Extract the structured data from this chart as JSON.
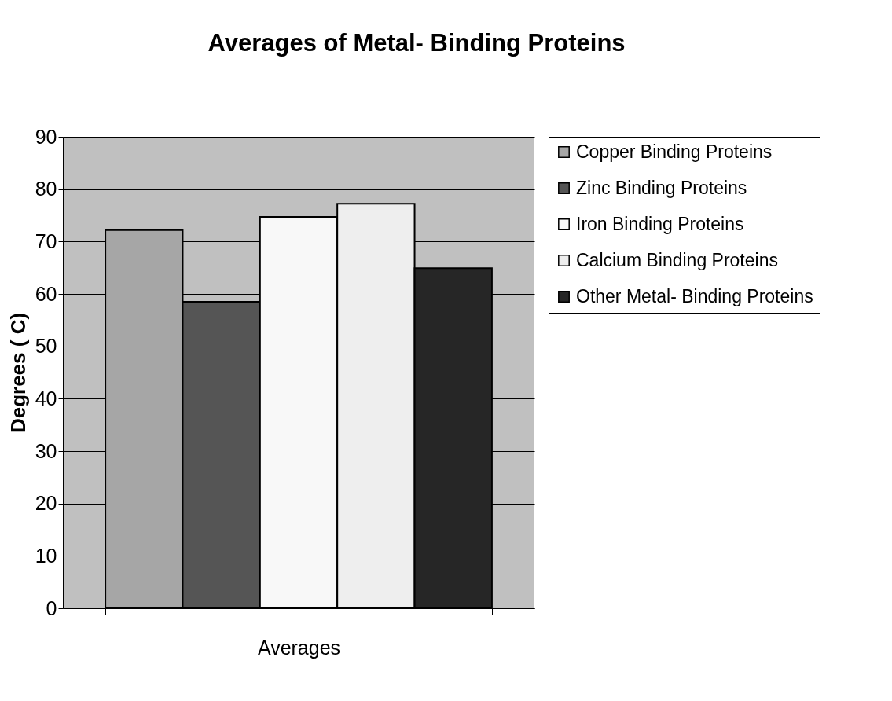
{
  "chart_data": {
    "type": "bar",
    "title": "Averages of Metal- Binding Proteins",
    "ylabel": "Degrees ( C)",
    "categories": [
      "Averages"
    ],
    "series": [
      {
        "name": "Copper Binding Proteins",
        "color": "#a6a6a6",
        "values": [
          72.2
        ]
      },
      {
        "name": "Zinc Binding Proteins",
        "color": "#555555",
        "values": [
          58.5
        ]
      },
      {
        "name": "Iron Binding Proteins",
        "color": "#f8f8f8",
        "values": [
          74.7
        ]
      },
      {
        "name": "Calcium Binding Proteins",
        "color": "#eeeeee",
        "values": [
          77.2
        ]
      },
      {
        "name": "Other Metal- Binding Proteins",
        "color": "#262626",
        "values": [
          64.9
        ]
      }
    ],
    "ylim": [
      0,
      90
    ],
    "yticks": [
      0,
      10,
      20,
      30,
      40,
      50,
      60,
      70,
      80,
      90
    ],
    "grid": "y",
    "legend": "right"
  }
}
